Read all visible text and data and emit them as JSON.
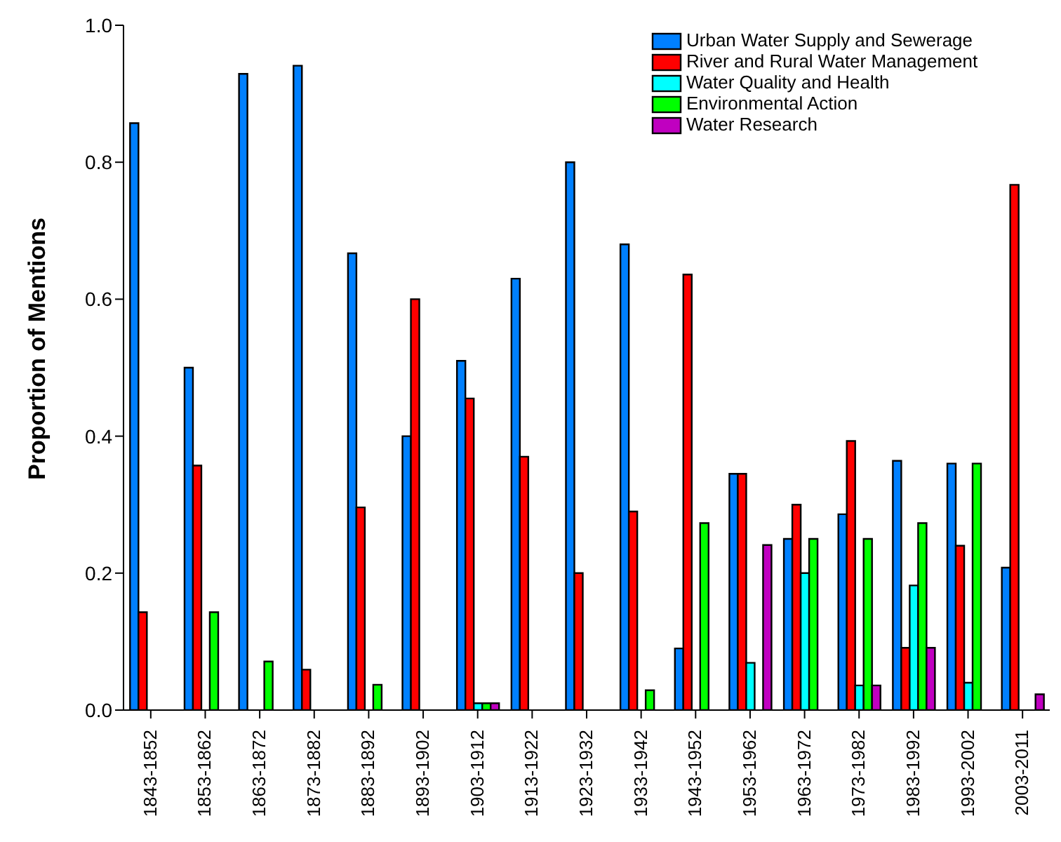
{
  "chart_data": {
    "type": "bar",
    "ylabel": "Proportion of Mentions",
    "categories": [
      "1843-1852",
      "1853-1862",
      "1863-1872",
      "1873-1882",
      "1883-1892",
      "1893-1902",
      "1903-1912",
      "1913-1922",
      "1923-1932",
      "1933-1942",
      "1943-1952",
      "1953-1962",
      "1963-1972",
      "1973-1982",
      "1983-1992",
      "1993-2002",
      "2003-2011"
    ],
    "series": [
      {
        "name": "Urban Water Supply and Sewerage",
        "color": "#0080ff",
        "values": [
          0.857,
          0.5,
          0.929,
          0.941,
          0.667,
          0.4,
          0.51,
          0.63,
          0.8,
          0.68,
          0.09,
          0.345,
          0.25,
          0.286,
          0.364,
          0.36,
          0.208
        ]
      },
      {
        "name": "River and Rural Water Management",
        "color": "#ff0000",
        "values": [
          0.143,
          0.357,
          null,
          0.059,
          0.296,
          0.6,
          0.455,
          0.37,
          0.2,
          0.29,
          0.636,
          0.345,
          0.3,
          0.393,
          0.091,
          0.24,
          0.767
        ]
      },
      {
        "name": "Water Quality and Health",
        "color": "#00ffff",
        "values": [
          null,
          null,
          null,
          null,
          null,
          null,
          0.01,
          null,
          null,
          null,
          null,
          0.069,
          0.2,
          0.036,
          0.182,
          0.04,
          null
        ]
      },
      {
        "name": "Environmental Action",
        "color": "#00ff00",
        "values": [
          null,
          0.143,
          0.071,
          null,
          0.037,
          null,
          0.01,
          null,
          null,
          0.029,
          0.273,
          null,
          0.25,
          0.25,
          0.273,
          0.36,
          null
        ]
      },
      {
        "name": "Water Research",
        "color": "#c000c0",
        "values": [
          null,
          null,
          null,
          null,
          null,
          null,
          0.01,
          null,
          null,
          null,
          null,
          0.241,
          null,
          0.036,
          0.091,
          null,
          0.023
        ]
      }
    ],
    "ylim": [
      0,
      1
    ],
    "yticks": [
      {
        "value": 0,
        "label": "0.0"
      },
      {
        "value": 0.2,
        "label": "0.2"
      },
      {
        "value": 0.4,
        "label": "0.4"
      },
      {
        "value": 0.6,
        "label": "0.6"
      },
      {
        "value": 0.8,
        "label": "0.8"
      },
      {
        "value": 1,
        "label": "1.0"
      }
    ],
    "grid": false,
    "legend": "top right"
  }
}
